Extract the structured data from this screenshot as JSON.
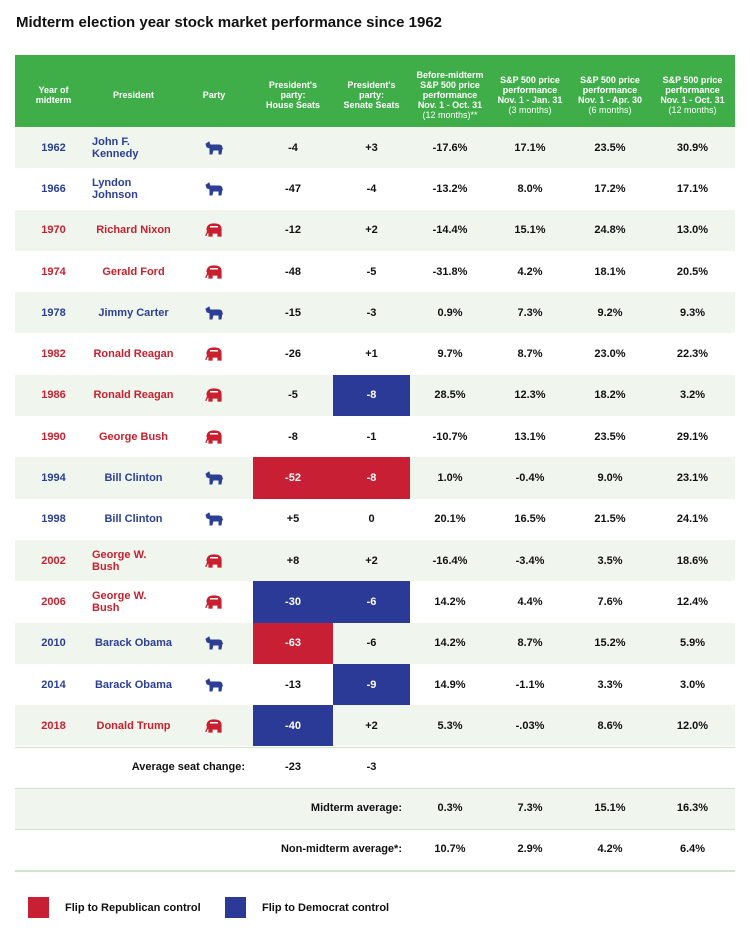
{
  "title": "Midterm election year stock market performance since 1962",
  "party_colors": {
    "democrat": "#2b3f95",
    "republican": "#c8202f"
  },
  "flip_colors": {
    "democrat": "#2b3a97",
    "republican": "#c91f35"
  },
  "table": {
    "columns": [
      {
        "key": "year",
        "lines": [
          "Year of",
          "midterm"
        ]
      },
      {
        "key": "president",
        "lines": [
          "President"
        ]
      },
      {
        "key": "party",
        "lines": [
          "Party"
        ]
      },
      {
        "key": "house",
        "lines": [
          "President's",
          "party:",
          "House Seats"
        ]
      },
      {
        "key": "senate",
        "lines": [
          "President's",
          "party:",
          "Senate Seats"
        ]
      },
      {
        "key": "before",
        "lines": [
          "Before-midterm",
          "S&P 500 price",
          "performance",
          "Nov. 1 - Oct. 31"
        ],
        "note": "(12 months)**"
      },
      {
        "key": "jan",
        "lines": [
          "S&P 500 price",
          "performance",
          "Nov. 1 - Jan. 31"
        ],
        "note": "(3 months)"
      },
      {
        "key": "apr",
        "lines": [
          "S&P 500 price",
          "performance",
          "Nov. 1 - Apr. 30"
        ],
        "note": "(6 months)"
      },
      {
        "key": "oct",
        "lines": [
          "S&P 500 price",
          "performance",
          "Nov. 1 - Oct. 31"
        ],
        "note": "(12 months)"
      }
    ],
    "rows": [
      {
        "year": "1962",
        "president": "John F. Kennedy",
        "party": "democrat",
        "house": "-4",
        "senate": "+3",
        "before": "-17.6%",
        "jan": "17.1%",
        "apr": "23.5%",
        "oct": "30.9%"
      },
      {
        "year": "1966",
        "president": "Lyndon Johnson",
        "party": "democrat",
        "house": "-47",
        "senate": "-4",
        "before": "-13.2%",
        "jan": "8.0%",
        "apr": "17.2%",
        "oct": "17.1%"
      },
      {
        "year": "1970",
        "president": "Richard Nixon",
        "party": "republican",
        "house": "-12",
        "senate": "+2",
        "before": "-14.4%",
        "jan": "15.1%",
        "apr": "24.8%",
        "oct": "13.0%"
      },
      {
        "year": "1974",
        "president": "Gerald Ford",
        "party": "republican",
        "house": "-48",
        "senate": "-5",
        "before": "-31.8%",
        "jan": "4.2%",
        "apr": "18.1%",
        "oct": "20.5%"
      },
      {
        "year": "1978",
        "president": "Jimmy Carter",
        "party": "democrat",
        "house": "-15",
        "senate": "-3",
        "before": "0.9%",
        "jan": "7.3%",
        "apr": "9.2%",
        "oct": "9.3%"
      },
      {
        "year": "1982",
        "president": "Ronald Reagan",
        "party": "republican",
        "house": "-26",
        "senate": "+1",
        "before": "9.7%",
        "jan": "8.7%",
        "apr": "23.0%",
        "oct": "22.3%"
      },
      {
        "year": "1986",
        "president": "Ronald Reagan",
        "party": "republican",
        "house": "-5",
        "senate": "-8",
        "senate_flip": "democrat",
        "before": "28.5%",
        "jan": "12.3%",
        "apr": "18.2%",
        "oct": "3.2%"
      },
      {
        "year": "1990",
        "president": "George Bush",
        "party": "republican",
        "house": "-8",
        "senate": "-1",
        "before": "-10.7%",
        "jan": "13.1%",
        "apr": "23.5%",
        "oct": "29.1%"
      },
      {
        "year": "1994",
        "president": "Bill Clinton",
        "party": "democrat",
        "house": "-52",
        "house_flip": "republican",
        "senate": "-8",
        "senate_flip": "republican",
        "before": "1.0%",
        "jan": "-0.4%",
        "apr": "9.0%",
        "oct": "23.1%"
      },
      {
        "year": "1998",
        "president": "Bill Clinton",
        "party": "democrat",
        "house": "+5",
        "senate": "0",
        "before": "20.1%",
        "jan": "16.5%",
        "apr": "21.5%",
        "oct": "24.1%"
      },
      {
        "year": "2002",
        "president": "George W. Bush",
        "party": "republican",
        "house": "+8",
        "senate": "+2",
        "before": "-16.4%",
        "jan": "-3.4%",
        "apr": "3.5%",
        "oct": "18.6%"
      },
      {
        "year": "2006",
        "president": "George W. Bush",
        "party": "republican",
        "house": "-30",
        "house_flip": "democrat",
        "senate": "-6",
        "senate_flip": "democrat",
        "before": "14.2%",
        "jan": "4.4%",
        "apr": "7.6%",
        "oct": "12.4%"
      },
      {
        "year": "2010",
        "president": "Barack Obama",
        "party": "democrat",
        "house": "-63",
        "house_flip": "republican",
        "senate": "-6",
        "before": "14.2%",
        "jan": "8.7%",
        "apr": "15.2%",
        "oct": "5.9%"
      },
      {
        "year": "2014",
        "president": "Barack Obama",
        "party": "democrat",
        "house": "-13",
        "senate": "-9",
        "senate_flip": "democrat",
        "before": "14.9%",
        "jan": "-1.1%",
        "apr": "3.3%",
        "oct": "3.0%"
      },
      {
        "year": "2018",
        "president": "Donald Trump",
        "party": "republican",
        "house": "-40",
        "house_flip": "democrat",
        "senate": "+2",
        "before": "5.3%",
        "jan": "-.03%",
        "apr": "8.6%",
        "oct": "12.0%"
      }
    ],
    "summary": [
      {
        "label": "Average seat change:",
        "label_end": "party",
        "values": {
          "house": "-23",
          "senate": "-3"
        }
      },
      {
        "label": "Midterm average:",
        "label_end": "senate",
        "values": {
          "before": "0.3%",
          "jan": "7.3%",
          "apr": "15.1%",
          "oct": "16.3%"
        }
      },
      {
        "label": "Non-midterm average*:",
        "label_end": "senate",
        "values": {
          "before": "10.7%",
          "jan": "2.9%",
          "apr": "4.2%",
          "oct": "6.4%"
        }
      }
    ]
  },
  "legend": [
    {
      "label": "Flip to Republican control",
      "party": "republican"
    },
    {
      "label": "Flip to Democrat control",
      "party": "democrat"
    }
  ]
}
